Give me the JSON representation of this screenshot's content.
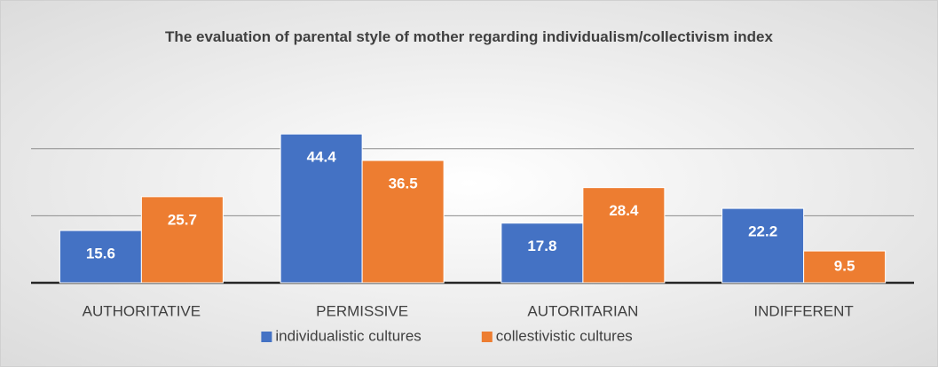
{
  "chart_data": {
    "type": "bar",
    "title": "The evaluation of parental style of mother regarding individualism/collectivism index",
    "categories": [
      "AUTHORITATIVE",
      "PERMISSIVE",
      "AUTORITARIAN",
      "INDIFFERENT"
    ],
    "series": [
      {
        "name": "individualistic cultures",
        "color": "#4472c4",
        "values": [
          15.6,
          44.4,
          17.8,
          22.2
        ]
      },
      {
        "name": "collestivistic cultures",
        "color": "#ed7d31",
        "values": [
          25.7,
          36.5,
          28.4,
          9.5
        ]
      }
    ],
    "ylim": [
      0,
      50
    ],
    "yticks": [
      0,
      20,
      40
    ],
    "grid": true,
    "legend": "bottom"
  }
}
